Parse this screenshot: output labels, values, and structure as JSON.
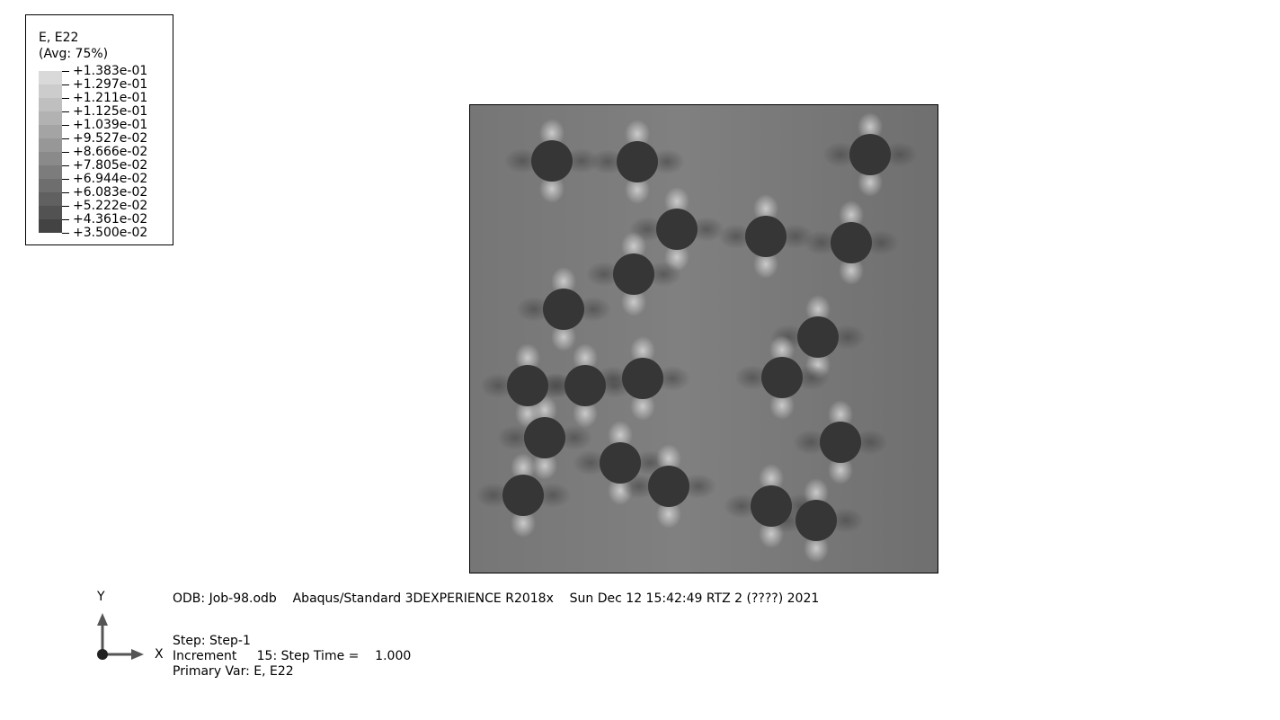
{
  "legend": {
    "title_line1": "E, E22",
    "title_line2": "(Avg: 75%)",
    "labels": [
      "+1.383e-01",
      "+1.297e-01",
      "+1.211e-01",
      "+1.125e-01",
      "+1.039e-01",
      "+9.527e-02",
      "+8.666e-02",
      "+7.805e-02",
      "+6.944e-02",
      "+6.083e-02",
      "+5.222e-02",
      "+4.361e-02",
      "+3.500e-02"
    ],
    "band_colors": [
      "#d9d9d9",
      "#cccccc",
      "#bfbfbf",
      "#b2b2b2",
      "#a4a4a4",
      "#979797",
      "#8a8a8a",
      "#7c7c7c",
      "#6e6e6e",
      "#606060",
      "#525252",
      "#434343"
    ]
  },
  "model": {
    "matrix_color": "#7d7d7d",
    "inclusion_color": "#363636",
    "edge_color": "#000000"
  },
  "triad": {
    "y_label": "Y",
    "x_label": "X",
    "arrow_color": "#555555"
  },
  "info": {
    "odb_line": "ODB: Job-98.odb    Abaqus/Standard 3DEXPERIENCE R2018x    Sun Dec 12 15:42:49 RTZ 2 (????) 2021",
    "step_line": "Step: Step-1",
    "increment_line": "Increment     15: Step Time =    1.000",
    "primary_var_line": "Primary Var: E, E22"
  }
}
